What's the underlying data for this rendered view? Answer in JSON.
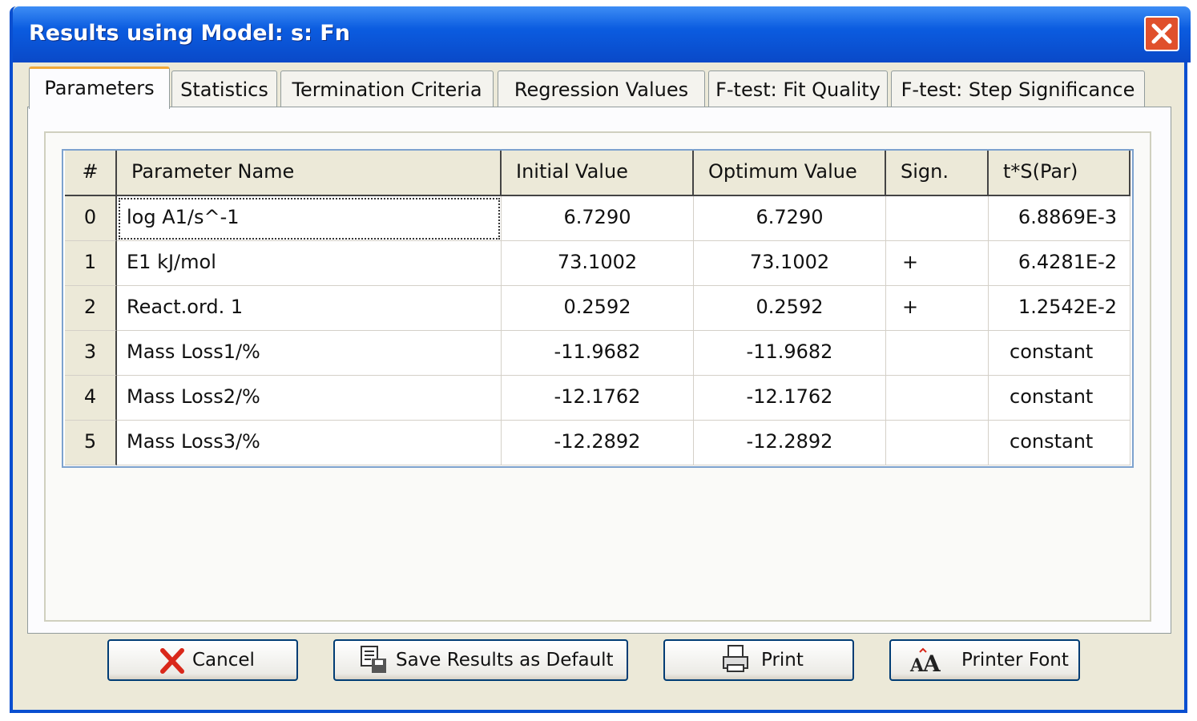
{
  "window": {
    "title": "Results using Model: s:  Fn"
  },
  "tabs": [
    "Parameters",
    "Statistics",
    "Termination Criteria",
    "Regression Values",
    "F-test: Fit Quality",
    "F-test: Step Significance"
  ],
  "table": {
    "headers": [
      "#",
      "Parameter Name",
      "Initial Value",
      "Optimum Value",
      "Sign.",
      "t*S(Par)"
    ],
    "rows": [
      {
        "index": "0",
        "name": "log A1/s^-1",
        "initial": "6.7290",
        "optimum": "6.7290",
        "tsp": "6.8869E-3"
      },
      {
        "index": "1",
        "name": "E1   kJ/mol",
        "initial": "73.1002",
        "optimum": "73.1002",
        "sign": "+",
        "tsp": "6.4281E-2"
      },
      {
        "index": "2",
        "name": "React.ord. 1",
        "initial": "0.2592",
        "optimum": "0.2592",
        "sign": "+",
        "tsp": "1.2542E-2"
      },
      {
        "index": "3",
        "name": "Mass Loss1/%",
        "initial": "-11.9682",
        "optimum": "-11.9682",
        "tsp": "constant"
      },
      {
        "index": "4",
        "name": "Mass Loss2/%",
        "initial": "-12.1762",
        "optimum": "-12.1762",
        "tsp": "constant"
      },
      {
        "index": "5",
        "name": "Mass Loss3/%",
        "initial": "-12.2892",
        "optimum": "-12.2892",
        "tsp": "constant"
      }
    ]
  },
  "buttons": [
    "Cancel",
    "Save Results as Default",
    "Print",
    "Printer Font"
  ]
}
